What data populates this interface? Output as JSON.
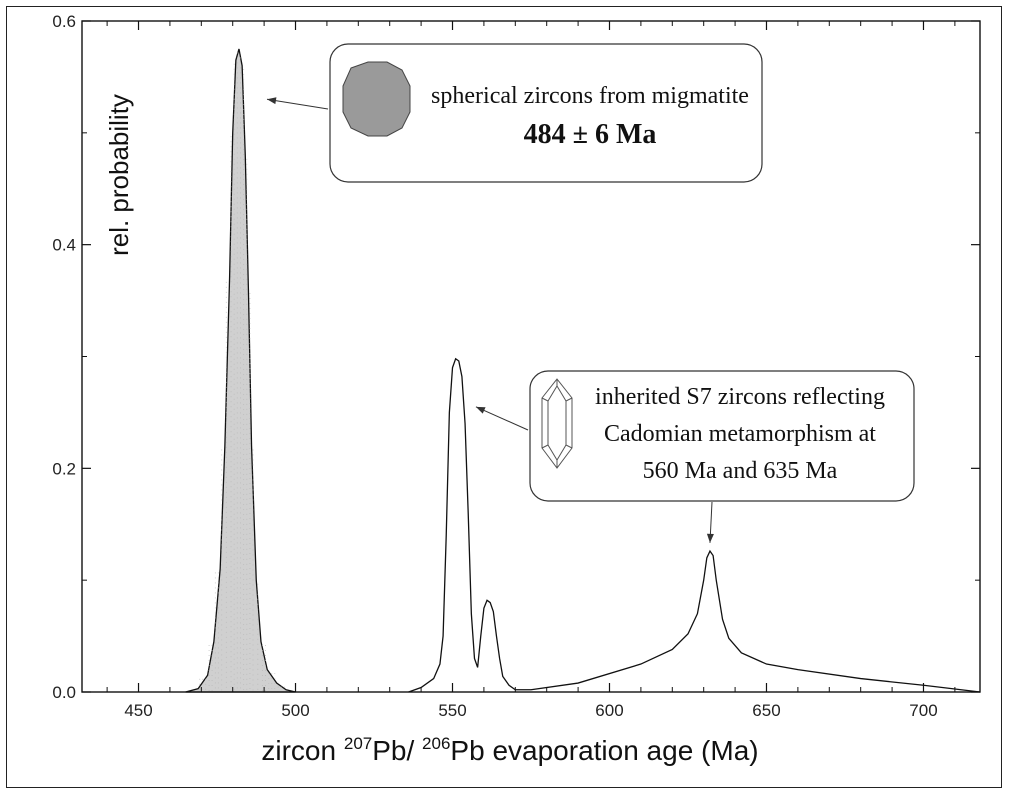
{
  "chart_data": {
    "type": "line",
    "xlabel": {
      "prefix": "zircon ",
      "sup1": "207",
      "mid": "Pb/ ",
      "sup2": "206",
      "suffix": "Pb evaporation age (Ma)"
    },
    "ylabel": "rel. probability",
    "xlim": [
      432,
      718
    ],
    "ylim": [
      0,
      0.6
    ],
    "x_ticks": [
      450,
      500,
      550,
      600,
      650,
      700
    ],
    "x_tick_labels": [
      "450",
      "500",
      "550",
      "600",
      "650",
      "700"
    ],
    "y_ticks": [
      0.0,
      0.2,
      0.4,
      0.6
    ],
    "y_tick_labels": [
      "0.0",
      "0.2",
      "0.4",
      "0.6"
    ],
    "grid": false,
    "series": [
      {
        "fill": "#d0d0d0",
        "x": [
          465,
          469,
          472,
          474,
          476,
          477.5,
          479,
          480,
          481,
          482,
          483,
          484,
          485,
          486,
          487.5,
          489,
          491,
          494,
          497,
          500
        ],
        "y": [
          0.0,
          0.003,
          0.015,
          0.045,
          0.11,
          0.22,
          0.37,
          0.5,
          0.565,
          0.575,
          0.56,
          0.48,
          0.36,
          0.22,
          0.1,
          0.045,
          0.02,
          0.008,
          0.002,
          0.0
        ]
      },
      {
        "fill": "none",
        "x": [
          536,
          540,
          544,
          546,
          547,
          548,
          549,
          550,
          551,
          552,
          553,
          554,
          555,
          556,
          557,
          558,
          559,
          560,
          561,
          562,
          563,
          564,
          565,
          566,
          568,
          570,
          575,
          590,
          610,
          620,
          625,
          628,
          630,
          631,
          632,
          633,
          634,
          636,
          638,
          642,
          650,
          660,
          680,
          700,
          718
        ],
        "y": [
          0.0,
          0.004,
          0.012,
          0.025,
          0.05,
          0.14,
          0.25,
          0.29,
          0.298,
          0.296,
          0.282,
          0.24,
          0.16,
          0.07,
          0.03,
          0.022,
          0.05,
          0.075,
          0.082,
          0.08,
          0.072,
          0.05,
          0.03,
          0.014,
          0.006,
          0.002,
          0.002,
          0.008,
          0.025,
          0.038,
          0.052,
          0.07,
          0.1,
          0.12,
          0.126,
          0.122,
          0.1,
          0.065,
          0.048,
          0.035,
          0.025,
          0.02,
          0.012,
          0.006,
          0.0
        ]
      }
    ],
    "annotations": [
      {
        "lines": [
          "spherical zircons from migmatite",
          "484 ± 6 Ma"
        ],
        "arrow_to": [
          482,
          0.53
        ]
      },
      {
        "lines": [
          "inherited S7 zircons reflecting",
          "Cadomian metamorphism at",
          "560 Ma and 635 Ma"
        ],
        "arrow_to": [
          [
            553,
            0.255
          ],
          [
            632,
            0.128
          ]
        ]
      }
    ]
  }
}
